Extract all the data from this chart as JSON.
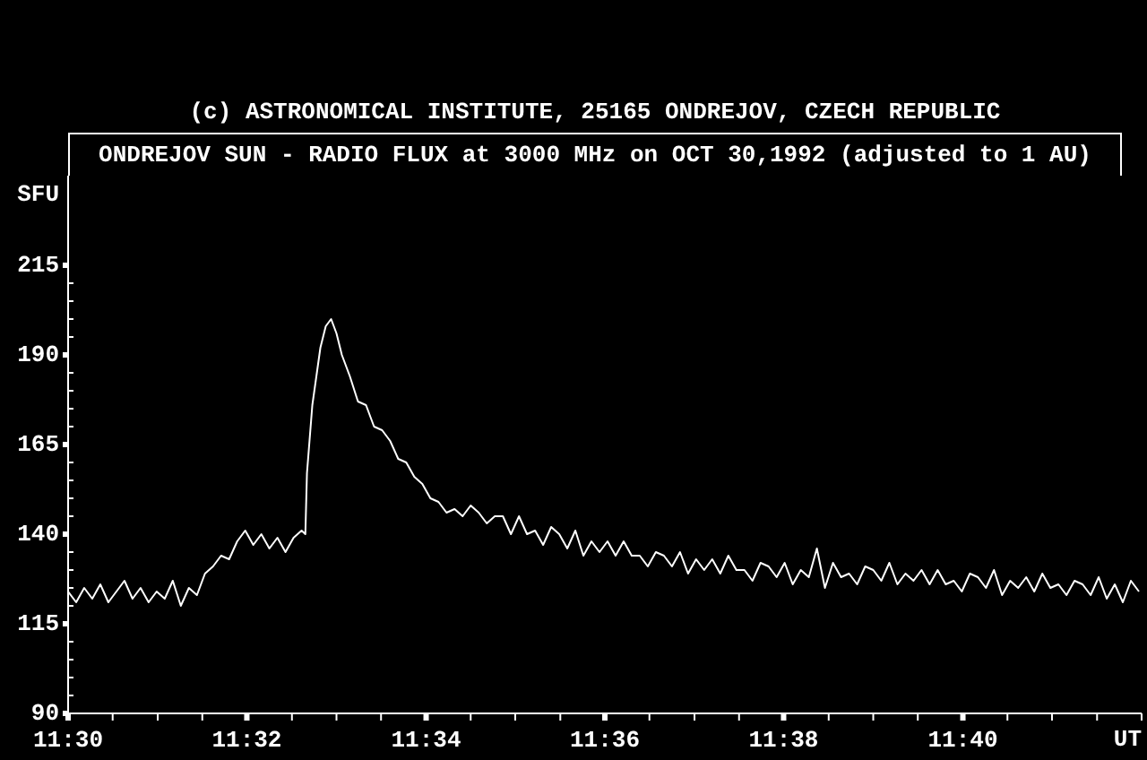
{
  "chart_data": {
    "type": "line",
    "title": "ONDREJOV SUN - RADIO FLUX at 3000 MHz on OCT 30,1992 (adjusted to 1 AU)",
    "annotations": [
      "(c) ASTRONOMICAL INSTITUTE, 25165 ONDREJOV, CZECH REPUBLIC"
    ],
    "xlabel": "UT",
    "ylabel": "SFU",
    "x": [
      11.5,
      11.5015,
      11.503,
      11.5045,
      11.506,
      11.5075,
      11.509,
      11.5105,
      11.512,
      11.5135,
      11.515,
      11.5165,
      11.518,
      11.5195,
      11.521,
      11.5225,
      11.524,
      11.5255,
      11.527,
      11.5285,
      11.53,
      11.5315,
      11.533,
      11.5345,
      11.536,
      11.5375,
      11.539,
      11.5405,
      11.542,
      11.5435,
      11.5442,
      11.5445,
      11.5455,
      11.547,
      11.548,
      11.549,
      11.5495,
      11.55,
      11.551,
      11.5525,
      11.554,
      11.5555,
      11.557,
      11.5585,
      11.56,
      11.5615,
      11.563,
      11.5645,
      11.566,
      11.5675,
      11.569,
      11.5705,
      11.572,
      11.5735,
      11.575,
      11.5765,
      11.578,
      11.5795,
      11.581,
      11.5825,
      11.584,
      11.5855,
      11.587,
      11.5885,
      11.59,
      11.5915,
      11.593,
      11.5945,
      11.596,
      11.5975,
      11.599,
      11.6005,
      11.602,
      11.6035,
      11.605,
      11.6065,
      11.608,
      11.6095,
      11.611,
      11.6125,
      11.614,
      11.6155,
      11.617,
      11.6185,
      11.62,
      11.6215,
      11.623,
      11.6245,
      11.626,
      11.6275,
      11.629,
      11.6305,
      11.632,
      11.6335,
      11.635,
      11.6365,
      11.638,
      11.6395,
      11.641,
      11.6425,
      11.644,
      11.6455,
      11.647,
      11.6485,
      11.65,
      11.6515,
      11.653,
      11.6545,
      11.656,
      11.6575,
      11.659,
      11.6605,
      11.662,
      11.6635,
      11.665,
      11.6665,
      11.668,
      11.6695,
      11.671,
      11.6725,
      11.674,
      11.6755,
      11.677,
      11.6785,
      11.68,
      11.6815,
      11.683,
      11.6845,
      11.686,
      11.6875,
      11.689,
      11.6905,
      11.692,
      11.6935,
      11.695,
      11.6965,
      11.698,
      11.6995
    ],
    "series": [
      {
        "color": "#ffffff",
        "values": [
          124,
          121,
          125,
          122,
          126,
          121,
          124,
          127,
          122,
          125,
          121,
          124,
          122,
          127,
          120,
          125,
          123,
          129,
          131,
          134,
          133,
          138,
          141,
          137,
          140,
          136,
          139,
          135,
          139,
          141,
          140,
          157,
          176,
          192,
          198,
          200,
          198,
          196,
          190,
          184,
          177,
          176,
          170,
          169,
          166,
          161,
          160,
          156,
          154,
          150,
          149,
          146,
          147,
          145,
          148,
          146,
          143,
          145,
          145,
          140,
          145,
          140,
          141,
          137,
          142,
          140,
          136,
          141,
          134,
          138,
          135,
          138,
          134,
          138,
          134,
          134,
          131,
          135,
          134,
          131,
          135,
          129,
          133,
          130,
          133,
          129,
          134,
          130,
          130,
          127,
          132,
          131,
          128,
          132,
          126,
          130,
          128,
          136,
          125,
          132,
          128,
          129,
          126,
          131,
          130,
          127,
          132,
          126,
          129,
          127,
          130,
          126,
          130,
          126,
          127,
          124,
          129,
          128,
          125,
          130,
          123,
          127,
          125,
          128,
          124,
          129,
          125,
          126,
          123,
          127,
          126,
          123,
          128,
          122,
          126,
          121,
          127,
          124
        ]
      }
    ],
    "xlim": [
      11.5,
      11.7
    ],
    "xticks": [
      {
        "value": 11.5,
        "label": "11:30"
      },
      {
        "value": 11.5083,
        "label": null
      },
      {
        "value": 11.5167,
        "label": null
      },
      {
        "value": 11.525,
        "label": null
      },
      {
        "value": 11.5333,
        "label": "11:32"
      },
      {
        "value": 11.5417,
        "label": null
      },
      {
        "value": 11.55,
        "label": null
      },
      {
        "value": 11.5583,
        "label": null
      },
      {
        "value": 11.5667,
        "label": "11:34"
      },
      {
        "value": 11.575,
        "label": null
      },
      {
        "value": 11.5833,
        "label": null
      },
      {
        "value": 11.5917,
        "label": null
      },
      {
        "value": 11.6,
        "label": "11:36"
      },
      {
        "value": 11.6083,
        "label": null
      },
      {
        "value": 11.6167,
        "label": null
      },
      {
        "value": 11.625,
        "label": null
      },
      {
        "value": 11.6333,
        "label": "11:38"
      },
      {
        "value": 11.6417,
        "label": null
      },
      {
        "value": 11.65,
        "label": null
      },
      {
        "value": 11.6583,
        "label": null
      },
      {
        "value": 11.6667,
        "label": "11:40"
      },
      {
        "value": 11.675,
        "label": null
      },
      {
        "value": 11.6833,
        "label": null
      },
      {
        "value": 11.6917,
        "label": null
      },
      {
        "value": 11.7,
        "label": null
      }
    ],
    "ylim": [
      90,
      240
    ],
    "yticks": [
      90,
      {
        "value": 95,
        "label": null
      },
      {
        "value": 100,
        "label": null
      },
      {
        "value": 105,
        "label": null
      },
      {
        "value": 110,
        "label": null
      },
      115,
      {
        "value": 120,
        "label": null
      },
      {
        "value": 125,
        "label": null
      },
      {
        "value": 130,
        "label": null
      },
      {
        "value": 135,
        "label": null
      },
      140,
      {
        "value": 145,
        "label": null
      },
      {
        "value": 150,
        "label": null
      },
      {
        "value": 155,
        "label": null
      },
      {
        "value": 160,
        "label": null
      },
      165,
      {
        "value": 170,
        "label": null
      },
      {
        "value": 175,
        "label": null
      },
      {
        "value": 180,
        "label": null
      },
      {
        "value": 185,
        "label": null
      },
      190,
      {
        "value": 195,
        "label": null
      },
      {
        "value": 200,
        "label": null
      },
      {
        "value": 205,
        "label": null
      },
      {
        "value": 210,
        "label": null
      },
      215
    ],
    "line_style": "solid"
  }
}
